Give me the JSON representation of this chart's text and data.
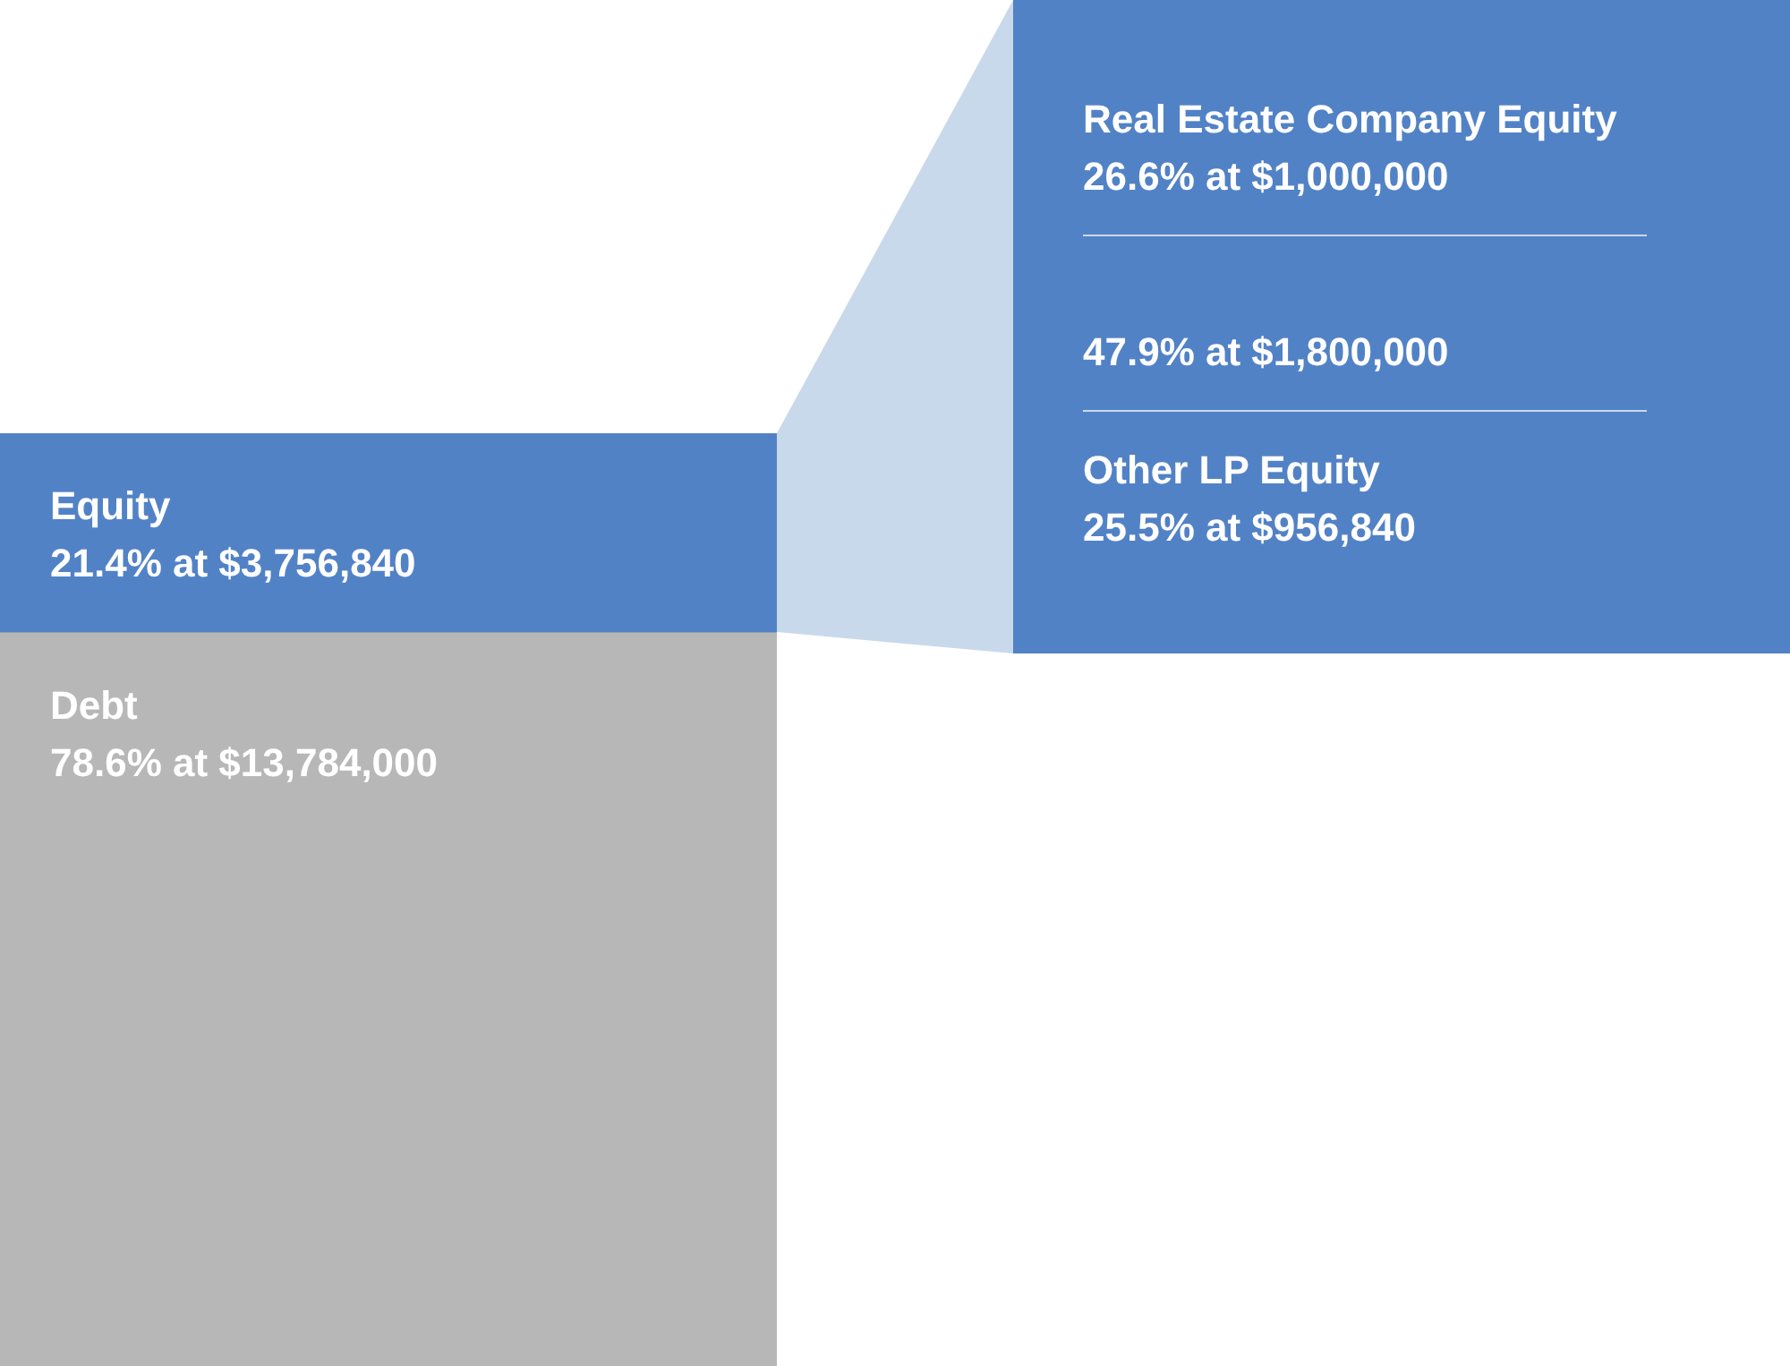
{
  "chart_data": [
    {
      "type": "bar",
      "stacked": true,
      "categories": [
        null
      ],
      "tick_labels": false,
      "legend": false,
      "series": [
        {
          "name": "Debt",
          "color": "#b7b7b7",
          "values": [
            13784000
          ],
          "value_labels": [
            "78.6% at $13,784,000"
          ]
        },
        {
          "name": "Equity",
          "color": "#5282c6",
          "values": [
            3756840
          ],
          "value_labels": [
            "21.4% at $3,756,840"
          ]
        }
      ]
    },
    {
      "type": "other",
      "color": "#5282c6",
      "categories": [
        "Real Estate Company Equity",
        null,
        "Other LP Equity"
      ],
      "value_labels": [
        "26.6% at $1,000,000",
        "47.9% at $1,800,000",
        "25.5% at $956,840"
      ]
    }
  ]
}
